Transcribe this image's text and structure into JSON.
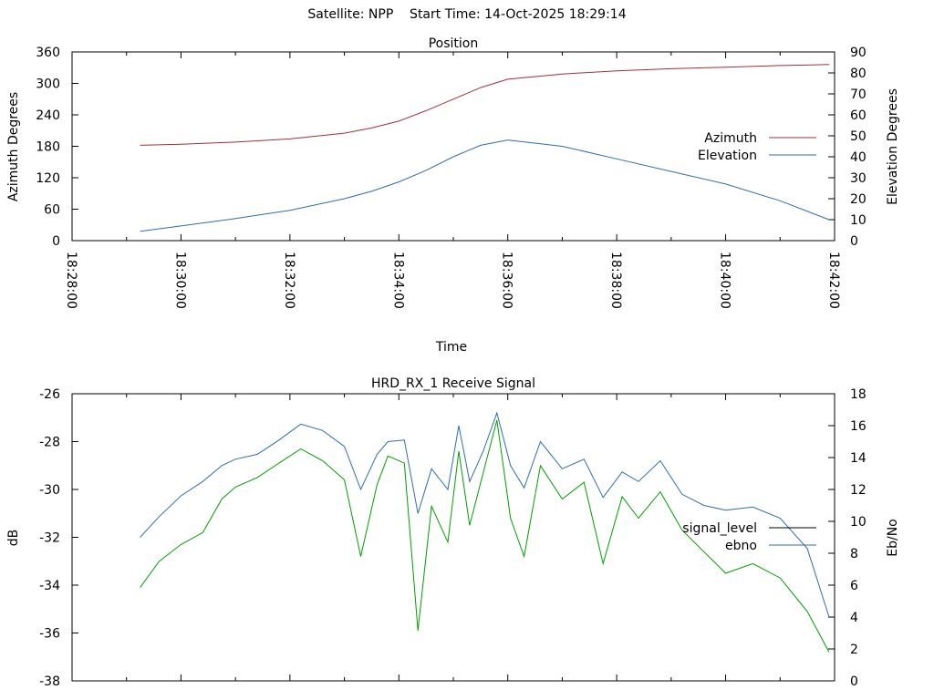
{
  "header": {
    "title": "Satellite: NPP    Start Time: 14-Oct-2025 18:29:14"
  },
  "colors": {
    "azimuth": "#a0303a",
    "elevation": "#2e6eaa",
    "signal_level": "#00a000",
    "ebno": "#2e6eaa",
    "axis": "#000000"
  },
  "chart_data": [
    {
      "type": "line",
      "title": "Position",
      "xlabel": "Time",
      "ylabel": "Azimuth Degrees",
      "y2label": "Elevation Degrees",
      "legend_position": "right",
      "grid": false,
      "x_ticks": [
        "18:28:00",
        "18:30:00",
        "18:32:00",
        "18:34:00",
        "18:36:00",
        "18:38:00",
        "18:40:00",
        "18:42:00"
      ],
      "xlim_minutes": [
        0,
        14
      ],
      "y_ticks": [
        0,
        60,
        120,
        180,
        240,
        300,
        360
      ],
      "ylim": [
        0,
        360
      ],
      "y2_ticks": [
        0,
        10,
        20,
        30,
        40,
        50,
        60,
        70,
        80,
        90
      ],
      "y2lim": [
        0,
        90
      ],
      "series": [
        {
          "name": "Azimuth",
          "axis": "y",
          "x_minutes": [
            1.25,
            2,
            3,
            4,
            5,
            5.5,
            6,
            6.5,
            7,
            7.5,
            8,
            9,
            10,
            11,
            12,
            13,
            13.9
          ],
          "values": [
            182,
            184,
            188,
            194,
            205,
            215,
            228,
            248,
            270,
            292,
            308,
            318,
            324,
            328,
            331,
            334,
            336
          ]
        },
        {
          "name": "Elevation",
          "axis": "y2",
          "x_minutes": [
            1.25,
            2,
            3,
            4,
            5,
            5.5,
            6,
            6.5,
            7,
            7.5,
            8,
            9,
            10,
            11,
            12,
            13,
            13.9
          ],
          "values": [
            4.5,
            7,
            10.5,
            14.5,
            20,
            23.5,
            28,
            33.5,
            40,
            45.5,
            48,
            45,
            39,
            33,
            27,
            19,
            10
          ]
        }
      ]
    },
    {
      "type": "line",
      "title": "HRD_RX_1 Receive Signal",
      "ylabel": "dB",
      "y2label": "Eb/No",
      "legend_position": "right",
      "grid": false,
      "xlim_minutes": [
        0,
        14
      ],
      "y_ticks": [
        -26,
        -28,
        -30,
        -32,
        -34,
        -36,
        -38
      ],
      "ylim": [
        -38,
        -26
      ],
      "y2_ticks": [
        0,
        2,
        4,
        6,
        8,
        10,
        12,
        14,
        16,
        18
      ],
      "y2lim": [
        0,
        18
      ],
      "series": [
        {
          "name": "signal_level",
          "axis": "y",
          "x_minutes": [
            1.25,
            1.6,
            2.0,
            2.4,
            2.75,
            3.0,
            3.4,
            3.8,
            4.2,
            4.6,
            5.0,
            5.3,
            5.6,
            5.8,
            6.1,
            6.35,
            6.6,
            6.9,
            7.1,
            7.3,
            7.55,
            7.8,
            8.05,
            8.3,
            8.6,
            9.0,
            9.4,
            9.75,
            10.1,
            10.4,
            10.8,
            11.2,
            11.6,
            12.0,
            12.5,
            13.0,
            13.5,
            13.9
          ],
          "values": [
            -34.1,
            -33.0,
            -32.3,
            -31.8,
            -30.4,
            -29.9,
            -29.5,
            -28.9,
            -28.3,
            -28.8,
            -29.6,
            -32.8,
            -29.8,
            -28.6,
            -28.9,
            -35.9,
            -30.7,
            -32.2,
            -28.4,
            -31.5,
            -29.3,
            -27.1,
            -31.2,
            -32.8,
            -29.0,
            -30.4,
            -29.7,
            -33.1,
            -30.3,
            -31.2,
            -30.1,
            -31.7,
            -32.6,
            -33.5,
            -33.1,
            -33.7,
            -35.1,
            -36.8
          ]
        },
        {
          "name": "ebno",
          "axis": "y2",
          "x_minutes": [
            1.25,
            1.6,
            2.0,
            2.4,
            2.75,
            3.0,
            3.4,
            3.8,
            4.2,
            4.6,
            5.0,
            5.3,
            5.6,
            5.8,
            6.1,
            6.35,
            6.6,
            6.9,
            7.1,
            7.3,
            7.55,
            7.8,
            8.05,
            8.3,
            8.6,
            9.0,
            9.4,
            9.75,
            10.1,
            10.4,
            10.8,
            11.2,
            11.6,
            12.0,
            12.5,
            13.0,
            13.5,
            13.9
          ],
          "values": [
            9.0,
            10.3,
            11.6,
            12.5,
            13.5,
            13.9,
            14.2,
            15.1,
            16.1,
            15.7,
            14.7,
            12.0,
            14.2,
            15.0,
            15.1,
            10.5,
            13.3,
            12.0,
            16.0,
            12.5,
            14.4,
            16.8,
            13.5,
            12.1,
            15.0,
            13.3,
            13.9,
            11.5,
            13.1,
            12.5,
            13.8,
            11.7,
            11.0,
            10.7,
            10.9,
            10.2,
            8.3,
            4.0
          ]
        }
      ]
    }
  ]
}
